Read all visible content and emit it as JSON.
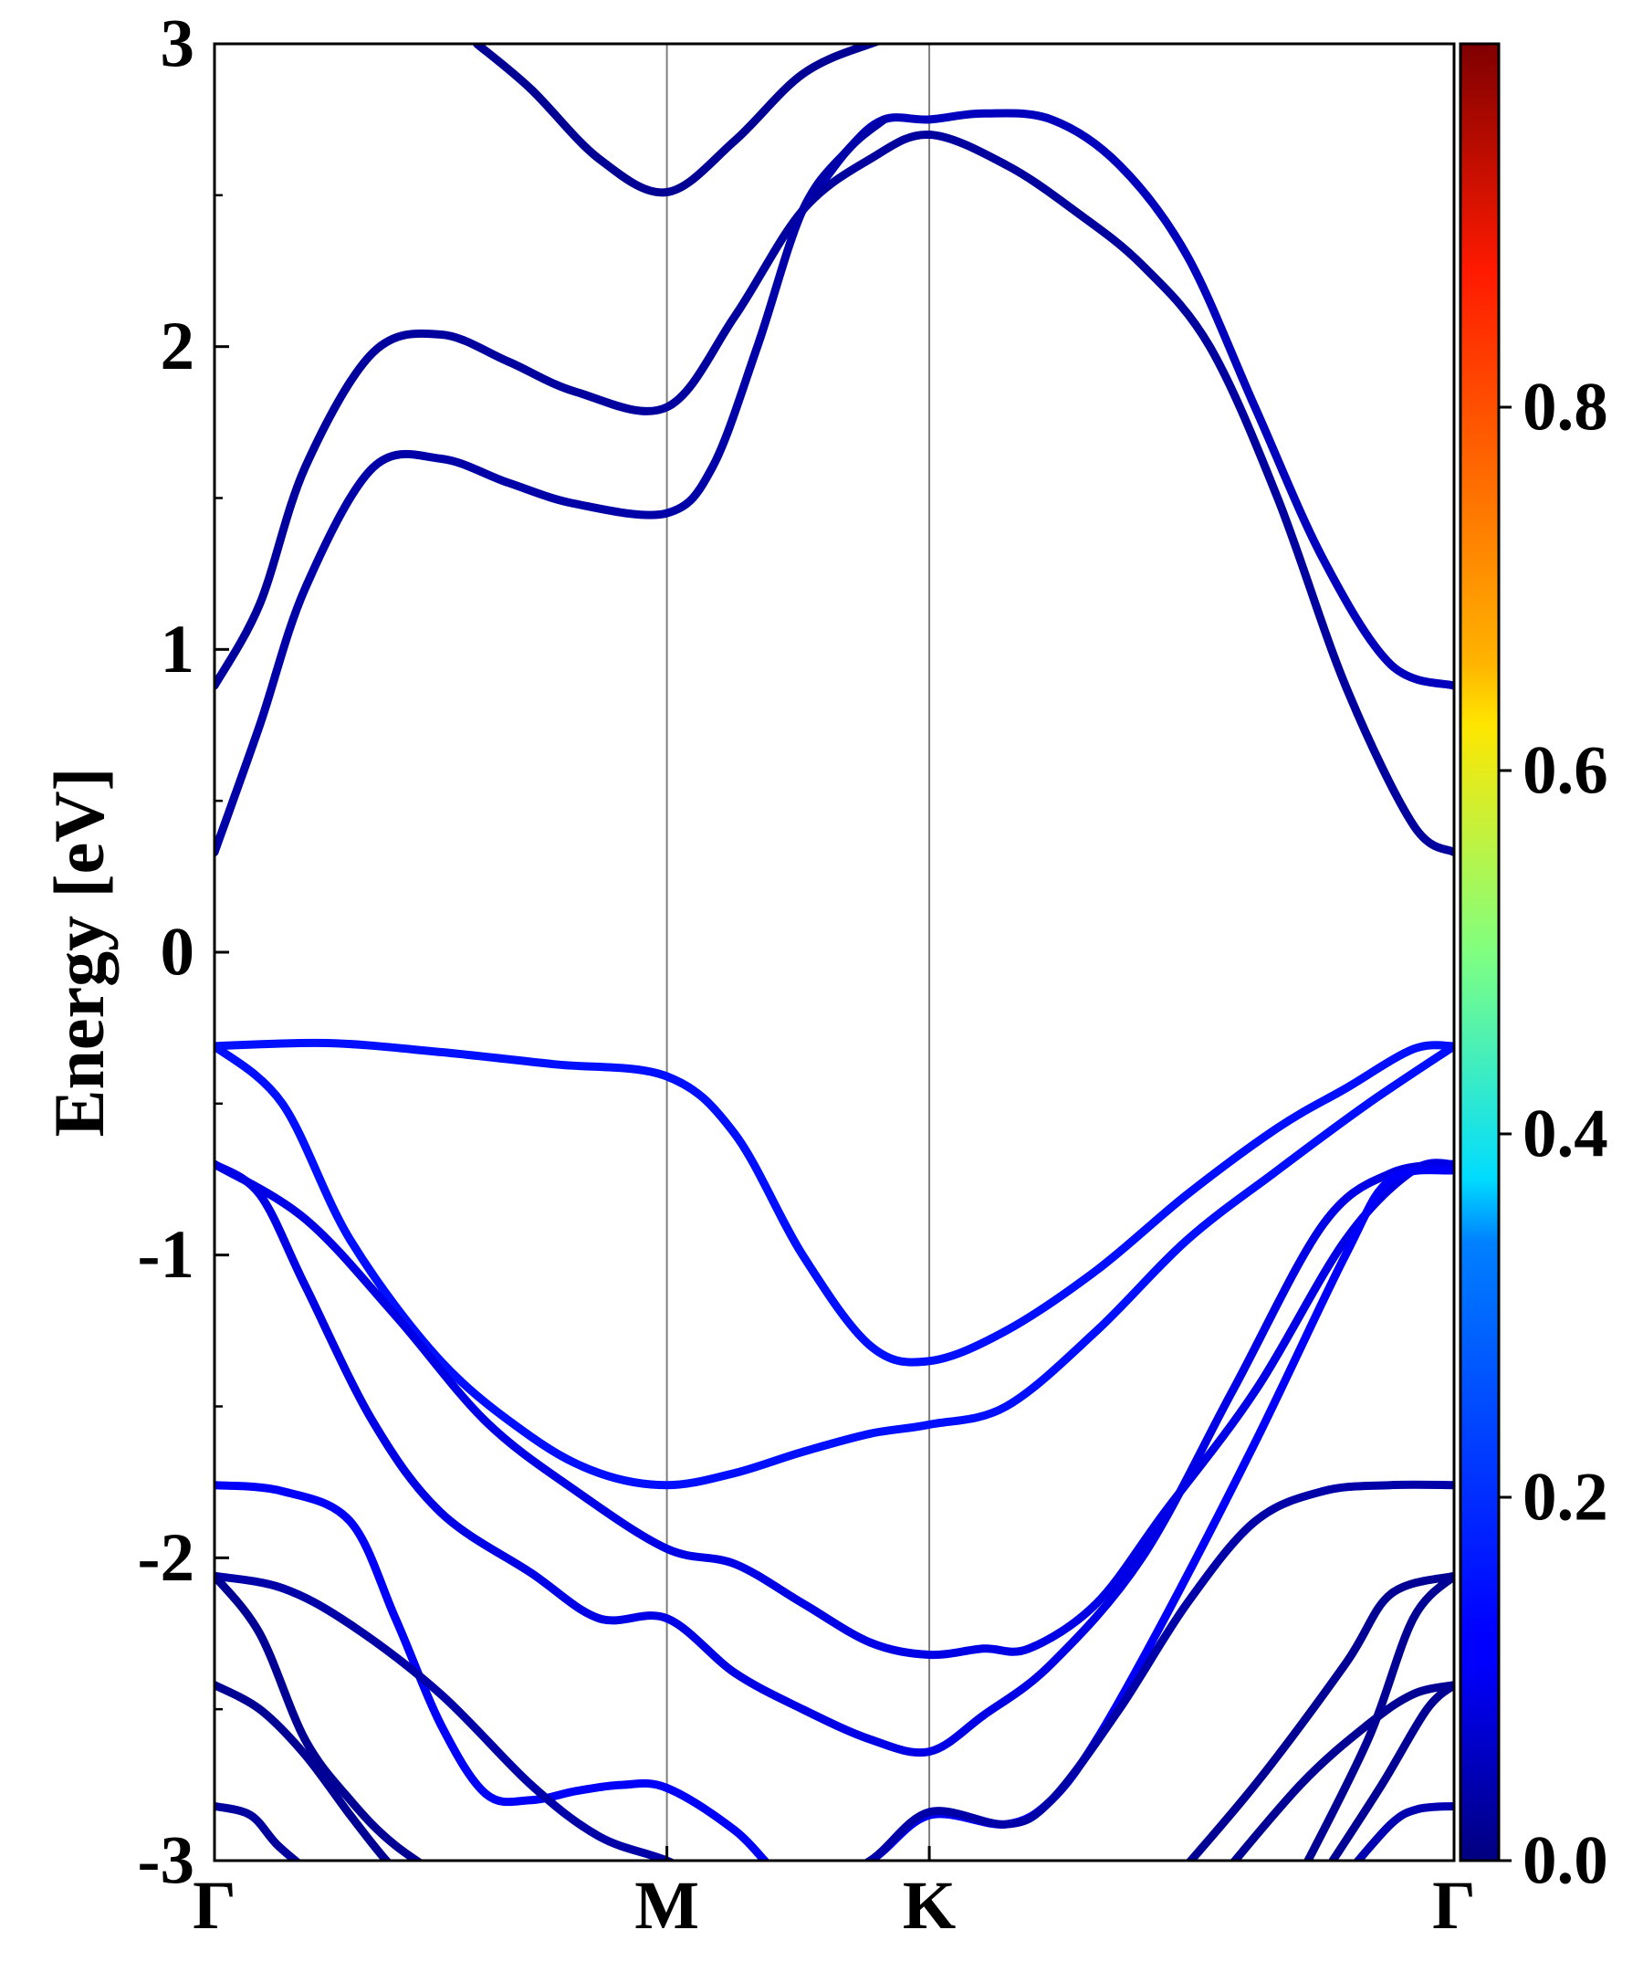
{
  "chart_data": {
    "type": "line",
    "title": "",
    "ylabel": "Energy [eV]",
    "xlabel": "",
    "ylim": [
      -3,
      3
    ],
    "yticks": [
      "3",
      "2",
      "1",
      "0",
      "-1",
      "-2",
      "-3"
    ],
    "ytick_values": [
      3,
      2,
      1,
      0,
      -1,
      -2,
      -3
    ],
    "kpoints": [
      {
        "label": "Γ",
        "x": 0
      },
      {
        "label": "M",
        "x": 1
      },
      {
        "label": "K",
        "x": 1.58
      },
      {
        "label": "Γ",
        "x": 2.74
      }
    ],
    "xlim": [
      0,
      2.74
    ],
    "colorbar": {
      "colormap": "jet",
      "range": [
        0,
        1
      ],
      "tick_labels": [
        "0.0",
        "0.2",
        "0.4",
        "0.6",
        "0.8"
      ],
      "tick_values": [
        0,
        0.2,
        0.4,
        0.6,
        0.8
      ]
    },
    "series": [
      {
        "weight": 0.02,
        "x": [
          0.58,
          0.7,
          0.85,
          1.0,
          1.15,
          1.3,
          1.45,
          1.58,
          1.75
        ],
        "y": [
          3.0,
          2.85,
          2.62,
          2.51,
          2.68,
          2.9,
          3.0,
          3.05,
          3.1
        ]
      },
      {
        "weight": 0.06,
        "x": [
          1.3,
          1.4,
          1.48,
          1.58,
          1.7,
          1.85,
          2.0,
          2.15,
          2.3,
          2.45,
          2.6,
          2.74
        ],
        "y": [
          2.45,
          2.65,
          2.75,
          2.75,
          2.77,
          2.75,
          2.6,
          2.3,
          1.8,
          1.3,
          0.95,
          0.88
        ]
      },
      {
        "weight": 0.03,
        "x": [
          0,
          0.1,
          0.2,
          0.35,
          0.5,
          0.65,
          0.8,
          1.0,
          1.15,
          1.3,
          1.45,
          1.58,
          1.75,
          1.9,
          2.05,
          2.2,
          2.35,
          2.5,
          2.65,
          2.74
        ],
        "y": [
          0.88,
          1.15,
          1.6,
          1.98,
          2.04,
          1.95,
          1.85,
          1.8,
          2.1,
          2.45,
          2.62,
          2.7,
          2.6,
          2.45,
          2.27,
          2.0,
          1.5,
          0.88,
          0.42,
          0.33
        ]
      },
      {
        "weight": 0.04,
        "x": [
          0,
          0.1,
          0.2,
          0.35,
          0.5,
          0.65,
          0.8,
          1.0,
          1.1,
          1.2,
          1.3,
          1.4,
          1.48
        ],
        "y": [
          0.33,
          0.75,
          1.2,
          1.6,
          1.63,
          1.55,
          1.48,
          1.45,
          1.6,
          2.0,
          2.45,
          2.65,
          2.75
        ]
      },
      {
        "weight": 0.14,
        "x": [
          0,
          0.25,
          0.5,
          0.75,
          1.0,
          1.15,
          1.3,
          1.45,
          1.58,
          1.75,
          1.95,
          2.15,
          2.35,
          2.5,
          2.65,
          2.74
        ],
        "y": [
          -0.31,
          -0.3,
          -0.33,
          -0.37,
          -0.41,
          -0.6,
          -1.0,
          -1.3,
          -1.35,
          -1.25,
          -1.05,
          -0.8,
          -0.58,
          -0.45,
          -0.32,
          -0.31
        ]
      },
      {
        "weight": 0.14,
        "x": [
          0,
          0.15,
          0.3,
          0.5,
          0.7,
          0.85,
          1.0,
          1.15,
          1.3,
          1.45,
          1.58,
          1.75,
          1.95,
          2.15,
          2.35,
          2.55,
          2.74
        ],
        "y": [
          -0.31,
          -0.5,
          -0.95,
          -1.35,
          -1.6,
          -1.72,
          -1.76,
          -1.72,
          -1.65,
          -1.59,
          -1.56,
          -1.5,
          -1.25,
          -0.95,
          -0.72,
          -0.5,
          -0.31
        ]
      },
      {
        "weight": 0.1,
        "x": [
          0,
          0.2,
          0.4,
          0.6,
          0.8,
          1.0,
          1.15,
          1.3,
          1.45,
          1.58,
          1.7,
          1.8,
          1.95,
          2.1,
          2.3,
          2.5,
          2.65,
          2.74
        ],
        "y": [
          -0.7,
          -0.88,
          -1.2,
          -1.55,
          -1.78,
          -1.97,
          -2.02,
          -2.15,
          -2.28,
          -2.32,
          -2.3,
          -2.3,
          -2.15,
          -1.85,
          -1.45,
          -0.95,
          -0.72,
          -0.7
        ]
      },
      {
        "weight": 0.1,
        "x": [
          0,
          0.1,
          0.2,
          0.35,
          0.5,
          0.7,
          0.85,
          1.0,
          1.15,
          1.3,
          1.45,
          1.58,
          1.7,
          1.85,
          2.05,
          2.25,
          2.45,
          2.6,
          2.74
        ],
        "y": [
          -0.7,
          -0.8,
          -1.1,
          -1.55,
          -1.85,
          -2.05,
          -2.2,
          -2.2,
          -2.38,
          -2.5,
          -2.6,
          -2.64,
          -2.52,
          -2.35,
          -2.0,
          -1.45,
          -0.9,
          -0.73,
          -0.7
        ]
      },
      {
        "weight": 0.12,
        "x": [
          0,
          0.15,
          0.3,
          0.4,
          0.5,
          0.6,
          0.7,
          0.8,
          0.9,
          1.0,
          1.15,
          1.3,
          1.45,
          1.58,
          1.75,
          1.85,
          1.95,
          2.1,
          2.3,
          2.5,
          2.6,
          2.74
        ],
        "y": [
          -1.76,
          -1.78,
          -1.88,
          -2.2,
          -2.55,
          -2.78,
          -2.8,
          -2.77,
          -2.75,
          -2.76,
          -2.9,
          -3.1,
          -3.0,
          -2.85,
          -2.88,
          -2.8,
          -2.6,
          -2.2,
          -1.62,
          -1.0,
          -0.75,
          -0.72
        ]
      },
      {
        "weight": 0.04,
        "x": [
          0,
          0.15,
          0.3,
          0.5,
          0.7,
          0.85,
          1.0,
          1.15,
          1.3,
          1.45,
          1.58,
          1.75,
          1.85,
          2.0,
          2.15,
          2.3,
          2.45,
          2.6,
          2.74
        ],
        "y": [
          -2.06,
          -2.1,
          -2.22,
          -2.45,
          -2.75,
          -2.92,
          -3.0,
          -3.1,
          -3.12,
          -3.0,
          -2.84,
          -2.88,
          -2.8,
          -2.5,
          -2.15,
          -1.88,
          -1.78,
          -1.76,
          -1.76
        ]
      },
      {
        "weight": 0.02,
        "x": [
          0,
          0.1,
          0.2,
          0.3,
          0.4,
          0.55
        ],
        "y": [
          -2.06,
          -2.25,
          -2.6,
          -2.8,
          -2.95,
          -3.1
        ]
      },
      {
        "weight": 0.02,
        "x": [
          0,
          0.1,
          0.2,
          0.3,
          0.38,
          0.45
        ],
        "y": [
          -2.42,
          -2.5,
          -2.65,
          -2.85,
          -3.0,
          -3.1
        ]
      },
      {
        "weight": 0.03,
        "x": [
          0,
          0.08,
          0.14,
          0.22
        ],
        "y": [
          -2.82,
          -2.85,
          -2.95,
          -3.05
        ]
      },
      {
        "weight": 0.02,
        "x": [
          2.1,
          2.3,
          2.5,
          2.6,
          2.74
        ],
        "y": [
          -3.1,
          -2.75,
          -2.35,
          -2.12,
          -2.06
        ]
      },
      {
        "weight": 0.02,
        "x": [
          2.2,
          2.4,
          2.55,
          2.65,
          2.74
        ],
        "y": [
          -3.1,
          -2.75,
          -2.55,
          -2.45,
          -2.42
        ]
      },
      {
        "weight": 0.02,
        "x": [
          2.4,
          2.55,
          2.65,
          2.74
        ],
        "y": [
          -3.05,
          -2.6,
          -2.2,
          -2.06
        ]
      },
      {
        "weight": 0.02,
        "x": [
          2.45,
          2.58,
          2.68,
          2.74
        ],
        "y": [
          -3.05,
          -2.75,
          -2.5,
          -2.42
        ]
      },
      {
        "weight": 0.05,
        "x": [
          2.5,
          2.6,
          2.66,
          2.74
        ],
        "y": [
          -3.05,
          -2.88,
          -2.83,
          -2.82
        ]
      }
    ]
  }
}
